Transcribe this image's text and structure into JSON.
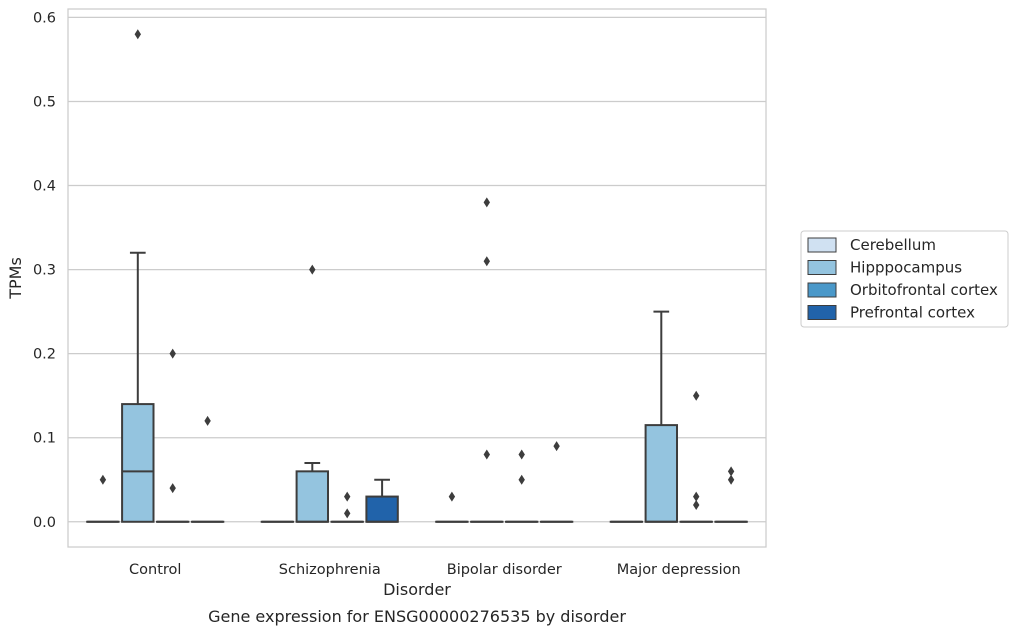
{
  "chart_data": {
    "type": "box",
    "title": "",
    "caption": "Gene expression for ENSG00000276535 by disorder",
    "xlabel": "Disorder",
    "ylabel": "TPMs",
    "ylim": [
      -0.03,
      0.61
    ],
    "yticks": [
      0.0,
      0.1,
      0.2,
      0.3,
      0.4,
      0.5,
      0.6
    ],
    "ytick_labels": [
      "0.0",
      "0.1",
      "0.2",
      "0.3",
      "0.4",
      "0.5",
      "0.6"
    ],
    "grid": "horizontal",
    "legend_position": "right",
    "categories": [
      "Control",
      "Schizophrenia",
      "Bipolar disorder",
      "Major depression"
    ],
    "series": [
      {
        "name": "Cerebellum",
        "color": "#d0e1f2",
        "boxes": [
          {
            "q1": 0.0,
            "median": 0.0,
            "q3": 0.0,
            "whisker_low": 0.0,
            "whisker_high": 0.0,
            "outliers": [
              0.05
            ]
          },
          {
            "q1": 0.0,
            "median": 0.0,
            "q3": 0.0,
            "whisker_low": 0.0,
            "whisker_high": 0.0,
            "outliers": []
          },
          {
            "q1": 0.0,
            "median": 0.0,
            "q3": 0.0,
            "whisker_low": 0.0,
            "whisker_high": 0.0,
            "outliers": [
              0.03
            ]
          },
          {
            "q1": 0.0,
            "median": 0.0,
            "q3": 0.0,
            "whisker_low": 0.0,
            "whisker_high": 0.0,
            "outliers": []
          }
        ]
      },
      {
        "name": "Hipppocampus",
        "color": "#94c4df",
        "boxes": [
          {
            "q1": 0.0,
            "median": 0.06,
            "q3": 0.14,
            "whisker_low": 0.0,
            "whisker_high": 0.32,
            "outliers": [
              0.58
            ]
          },
          {
            "q1": 0.0,
            "median": 0.0,
            "q3": 0.06,
            "whisker_low": 0.0,
            "whisker_high": 0.07,
            "outliers": [
              0.3
            ]
          },
          {
            "q1": 0.0,
            "median": 0.0,
            "q3": 0.0,
            "whisker_low": 0.0,
            "whisker_high": 0.0,
            "outliers": [
              0.38,
              0.31,
              0.08
            ]
          },
          {
            "q1": 0.0,
            "median": 0.0,
            "q3": 0.115,
            "whisker_low": 0.0,
            "whisker_high": 0.25,
            "outliers": []
          }
        ]
      },
      {
        "name": "Orbitofrontal cortex",
        "color": "#4a98c9",
        "boxes": [
          {
            "q1": 0.0,
            "median": 0.0,
            "q3": 0.0,
            "whisker_low": 0.0,
            "whisker_high": 0.0,
            "outliers": [
              0.2,
              0.04
            ]
          },
          {
            "q1": 0.0,
            "median": 0.0,
            "q3": 0.0,
            "whisker_low": 0.0,
            "whisker_high": 0.0,
            "outliers": [
              0.03,
              0.01
            ]
          },
          {
            "q1": 0.0,
            "median": 0.0,
            "q3": 0.0,
            "whisker_low": 0.0,
            "whisker_high": 0.0,
            "outliers": [
              0.08,
              0.05
            ]
          },
          {
            "q1": 0.0,
            "median": 0.0,
            "q3": 0.0,
            "whisker_low": 0.0,
            "whisker_high": 0.0,
            "outliers": [
              0.15,
              0.03,
              0.02
            ]
          }
        ]
      },
      {
        "name": "Prefrontal cortex",
        "color": "#2163aa",
        "boxes": [
          {
            "q1": 0.0,
            "median": 0.0,
            "q3": 0.0,
            "whisker_low": 0.0,
            "whisker_high": 0.0,
            "outliers": [
              0.12
            ]
          },
          {
            "q1": 0.0,
            "median": 0.0,
            "q3": 0.03,
            "whisker_low": 0.0,
            "whisker_high": 0.05,
            "outliers": []
          },
          {
            "q1": 0.0,
            "median": 0.0,
            "q3": 0.0,
            "whisker_low": 0.0,
            "whisker_high": 0.0,
            "outliers": [
              0.09
            ]
          },
          {
            "q1": 0.0,
            "median": 0.0,
            "q3": 0.0,
            "whisker_low": 0.0,
            "whisker_high": 0.0,
            "outliers": [
              0.06,
              0.05
            ]
          }
        ]
      }
    ]
  }
}
